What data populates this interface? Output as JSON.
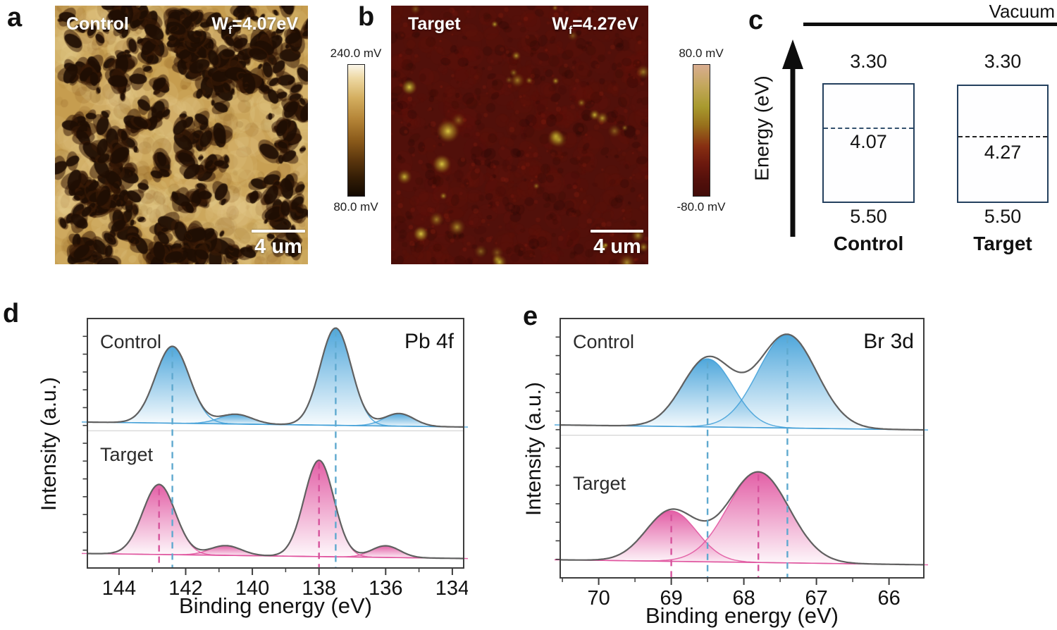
{
  "figure": {
    "panels": {
      "a": {
        "letter": "a",
        "sample_label": "Control",
        "wf": {
          "symbol": "W",
          "subscript": "f",
          "value": "=4.07eV"
        },
        "colorbar": {
          "top": "240.0 mV",
          "bottom": "80.0 mV"
        },
        "scalebar_label": "4 um"
      },
      "b": {
        "letter": "b",
        "sample_label": "Target",
        "wf": {
          "symbol": "W",
          "subscript": "f",
          "value": "=4.27eV"
        },
        "colorbar": {
          "top": "80.0 mV",
          "bottom": "-80.0 mV"
        },
        "scalebar_label": "4 um"
      },
      "c": {
        "letter": "c",
        "vacuum_label": "Vacuum",
        "axis_label": "Energy (eV)",
        "control": {
          "name": "Control",
          "cbm": "3.30",
          "wf": "4.07",
          "vbm": "5.50"
        },
        "target": {
          "name": "Target",
          "cbm": "3.30",
          "wf": "4.27",
          "vbm": "5.50"
        }
      },
      "d": {
        "letter": "d"
      },
      "e": {
        "letter": "e"
      }
    }
  },
  "chart_data": [
    {
      "id": "pb4f",
      "panel_letter": "d",
      "type": "line",
      "title": "Pb 4f",
      "xlabel": "Binding energy (eV)",
      "ylabel": "Intensity (a.u.)",
      "x_ticks": [
        144,
        142,
        140,
        138,
        136,
        134
      ],
      "x_minor_step": 1,
      "x_range": [
        144.95,
        133.66
      ],
      "x_reversed": true,
      "y_units": "arbitrary, two stacked offset spectra",
      "series": [
        {
          "name": "Control",
          "color": "#3f9fd8",
          "guide_color": "#5fa9cf",
          "peaks": [
            {
              "center": 142.4,
              "height": 0.79,
              "fwhm": 1.2
            },
            {
              "center": 140.5,
              "height": 0.1,
              "fwhm": 1.15
            },
            {
              "center": 137.5,
              "height": 1.0,
              "fwhm": 1.1
            },
            {
              "center": 135.6,
              "height": 0.13,
              "fwhm": 1.05
            }
          ],
          "guides": [
            142.4,
            137.5
          ]
        },
        {
          "name": "Target",
          "color": "#e0519e",
          "guide_color": "#d6539c",
          "peaks": [
            {
              "center": 142.8,
              "height": 0.72,
              "fwhm": 1.15
            },
            {
              "center": 140.8,
              "height": 0.1,
              "fwhm": 1.1
            },
            {
              "center": 138.0,
              "height": 0.99,
              "fwhm": 1.05
            },
            {
              "center": 136.0,
              "height": 0.12,
              "fwhm": 1.0
            }
          ],
          "guides": [
            142.8,
            138.0
          ]
        }
      ]
    },
    {
      "id": "br3d",
      "panel_letter": "e",
      "type": "line",
      "title": "Br 3d",
      "xlabel": "Binding energy (eV)",
      "ylabel": "Intensity (a.u.)",
      "x_ticks": [
        70,
        69,
        68,
        67,
        66
      ],
      "x_minor_step": 0.5,
      "x_range": [
        70.53,
        65.52
      ],
      "x_reversed": true,
      "y_units": "arbitrary, two stacked offset spectra",
      "series": [
        {
          "name": "Control",
          "color": "#3f9fd8",
          "guide_color": "#5fa9cf",
          "peaks": [
            {
              "center": 68.5,
              "height": 0.73,
              "fwhm": 0.82
            },
            {
              "center": 67.4,
              "height": 1.0,
              "fwhm": 0.95
            }
          ],
          "guides": [
            68.5,
            67.4
          ]
        },
        {
          "name": "Target",
          "color": "#e0519e",
          "guide_color": "#d6539c",
          "peaks": [
            {
              "center": 69.0,
              "height": 0.54,
              "fwhm": 0.82
            },
            {
              "center": 67.8,
              "height": 0.97,
              "fwhm": 1.0
            }
          ],
          "guides": [
            69.0,
            67.8
          ]
        }
      ]
    }
  ]
}
